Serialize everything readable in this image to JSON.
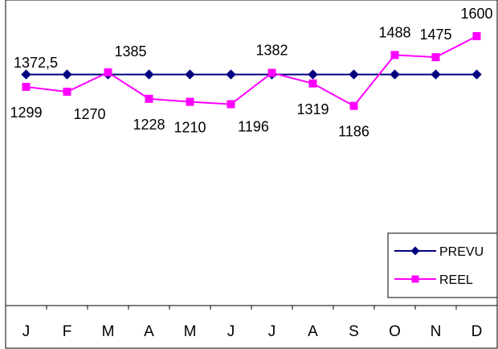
{
  "chart_data": {
    "type": "line",
    "categories": [
      "J",
      "F",
      "M",
      "A",
      "M",
      "J",
      "J",
      "A",
      "S",
      "O",
      "N",
      "D"
    ],
    "series": [
      {
        "name": "PREVU",
        "color": "#000080",
        "marker": "diamond",
        "values": [
          1372.5,
          1372.5,
          1372.5,
          1372.5,
          1372.5,
          1372.5,
          1372.5,
          1372.5,
          1372.5,
          1372.5,
          1372.5,
          1372.5
        ]
      },
      {
        "name": "REEL",
        "color": "#FF00FF",
        "marker": "square",
        "values": [
          1299,
          1270,
          1385,
          1228,
          1210,
          1196,
          1382,
          1319,
          1186,
          1488,
          1475,
          1600
        ]
      }
    ],
    "data_labels": [
      {
        "text": "1372,5",
        "x_index": 0,
        "series": "PREVU",
        "placement": "above"
      },
      {
        "text": "1299",
        "x_index": 0,
        "series": "REEL",
        "placement": "below"
      },
      {
        "text": "1270",
        "x_index": 1,
        "series": "REEL",
        "placement": "below-right"
      },
      {
        "text": "1385",
        "x_index": 2,
        "series": "REEL",
        "placement": "above-right"
      },
      {
        "text": "1228",
        "x_index": 3,
        "series": "REEL",
        "placement": "below"
      },
      {
        "text": "1210",
        "x_index": 4,
        "series": "REEL",
        "placement": "below"
      },
      {
        "text": "1196",
        "x_index": 5,
        "series": "REEL",
        "placement": "below-right"
      },
      {
        "text": "1382",
        "x_index": 6,
        "series": "REEL",
        "placement": "above"
      },
      {
        "text": "1319",
        "x_index": 7,
        "series": "REEL",
        "placement": "below"
      },
      {
        "text": "1186",
        "x_index": 8,
        "series": "REEL",
        "placement": "below"
      },
      {
        "text": "1488",
        "x_index": 9,
        "series": "REEL",
        "placement": "above"
      },
      {
        "text": "1475",
        "x_index": 10,
        "series": "REEL",
        "placement": "above"
      },
      {
        "text": "1600",
        "x_index": 11,
        "series": "REEL",
        "placement": "above"
      }
    ],
    "ylim": [
      0,
      1650
    ],
    "title": "",
    "xlabel": "",
    "ylabel": "",
    "grid": false,
    "legend_position": "bottom-right"
  }
}
